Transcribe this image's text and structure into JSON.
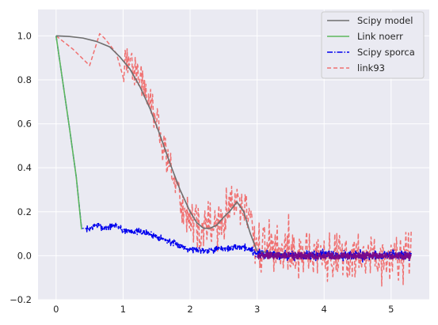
{
  "chart_data": {
    "type": "line",
    "title": "",
    "xlabel": "",
    "ylabel": "",
    "xlim": [
      -0.27,
      5.57
    ],
    "ylim": [
      -0.2,
      1.12
    ],
    "xticks": [
      0,
      1,
      2,
      3,
      4,
      5
    ],
    "yticks": [
      -0.2,
      0.0,
      0.2,
      0.4,
      0.6,
      0.8,
      1.0
    ],
    "xtick_labels": [
      "0",
      "1",
      "2",
      "3",
      "4",
      "5"
    ],
    "ytick_labels": [
      "−0.2",
      "0.0",
      "0.2",
      "0.4",
      "0.6",
      "0.8",
      "1.0"
    ],
    "grid": true,
    "legend_position": "top-right",
    "background_color": "#eaeaf2",
    "series": [
      {
        "name": "Scipy model",
        "color": "#6e6e6e",
        "style": "solid",
        "x": [
          0,
          0.2,
          0.4,
          0.6,
          0.8,
          0.95,
          1.1,
          1.25,
          1.4,
          1.55,
          1.7,
          1.85,
          2.0,
          2.1,
          2.2,
          2.3,
          2.4,
          2.5,
          2.6,
          2.7,
          2.8,
          2.9,
          3.0,
          3.5,
          4.0,
          4.5,
          5.0,
          5.3
        ],
        "y": [
          1.0,
          0.997,
          0.99,
          0.975,
          0.95,
          0.905,
          0.85,
          0.77,
          0.67,
          0.55,
          0.42,
          0.3,
          0.2,
          0.15,
          0.125,
          0.125,
          0.14,
          0.175,
          0.205,
          0.245,
          0.2,
          0.1,
          0.02,
          0.005,
          0.0,
          0.0,
          0.0,
          0.0
        ]
      },
      {
        "name": "Link noerr",
        "color": "#5cb85c",
        "style": "solid",
        "x": [
          0,
          0.1,
          0.2,
          0.3,
          0.38
        ],
        "y": [
          1.0,
          0.79,
          0.58,
          0.36,
          0.12
        ]
      },
      {
        "name": "Scipy sporca",
        "color": "#0000ee",
        "style": "dashdot",
        "x": [
          0,
          0.1,
          0.2,
          0.3,
          0.38,
          0.45,
          0.5,
          0.6,
          0.65,
          0.7,
          0.8,
          0.9,
          1.0,
          1.2,
          1.4,
          1.6,
          1.8,
          2.0,
          2.2,
          2.4,
          2.6,
          2.8,
          2.95,
          3.0,
          3.5,
          4.0,
          4.5,
          5.0,
          5.3
        ],
        "y": [
          1.0,
          0.79,
          0.58,
          0.36,
          0.125,
          0.12,
          0.125,
          0.14,
          0.135,
          0.125,
          0.13,
          0.14,
          0.115,
          0.11,
          0.1,
          0.075,
          0.05,
          0.03,
          0.025,
          0.03,
          0.035,
          0.04,
          0.02,
          0.01,
          0.0,
          0.005,
          0.0,
          0.005,
          0.0
        ]
      },
      {
        "name": "link93",
        "color": "#f07070",
        "style": "dashed",
        "x": [
          0,
          0.25,
          0.5,
          0.65,
          0.72,
          0.8,
          0.9,
          1.0,
          1.1,
          1.2,
          1.3,
          1.4,
          1.5,
          1.6,
          1.7,
          1.8,
          1.9,
          2.0,
          2.1,
          2.2,
          2.3,
          2.4,
          2.5,
          2.6,
          2.7,
          2.8,
          2.9,
          3.0,
          3.5,
          4.0,
          4.5,
          5.0,
          5.3
        ],
        "y": [
          1.0,
          0.94,
          0.865,
          1.01,
          0.99,
          0.96,
          0.92,
          0.86,
          0.88,
          0.84,
          0.78,
          0.69,
          0.6,
          0.5,
          0.39,
          0.3,
          0.21,
          0.17,
          0.13,
          0.12,
          0.13,
          0.14,
          0.17,
          0.2,
          0.26,
          0.2,
          0.15,
          0.04,
          0.02,
          0.0,
          -0.02,
          0.0,
          0.0
        ]
      }
    ]
  }
}
